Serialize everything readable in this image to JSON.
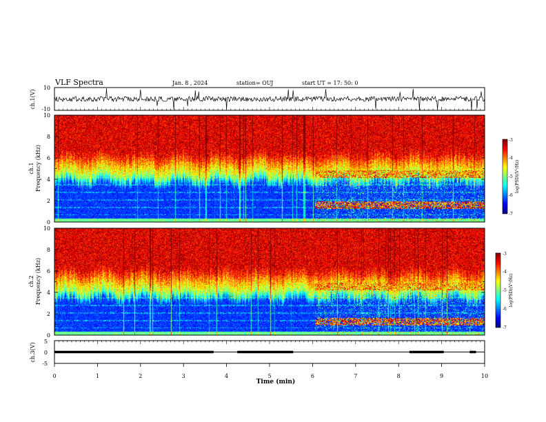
{
  "header": {
    "title": "VLF Spectra",
    "date": "Jan. 8 , 2024",
    "station": "station= OUJ",
    "start": "start UT = 17: 50: 0"
  },
  "chart_data": [
    {
      "type": "line",
      "panel": "ch1-waveform",
      "ylabel": "ch.1(V)",
      "ylim": [
        -10,
        10
      ],
      "y_ticks": [
        "10",
        "-10"
      ],
      "xlim": [
        0,
        10
      ],
      "series_color": "#000000",
      "baseline_v": 0
    },
    {
      "type": "heatmap",
      "panel": "ch1-spectrogram",
      "ylabel_top": "ch.1",
      "ylabel": "Frequency (kHz)",
      "ylim": [
        0,
        10
      ],
      "y_ticks": [
        "0",
        "2",
        "4",
        "6",
        "8",
        "10"
      ],
      "xlim": [
        0,
        10
      ],
      "colorbar": {
        "label": "log(PSD)(V²/Hz)",
        "range": [
          -7,
          -3
        ],
        "ticks": [
          "-3",
          "-4",
          "-5",
          "-6",
          "-7"
        ]
      },
      "feature_notes": {
        "low_band_top_khz": 4.3,
        "emission_start_min": 6.05,
        "emission_bands_khz": [
          1.6,
          4.5
        ]
      }
    },
    {
      "type": "heatmap",
      "panel": "ch2-spectrogram",
      "ylabel_top": "ch.2",
      "ylabel": "Frequency (kHz)",
      "ylim": [
        0,
        10
      ],
      "y_ticks": [
        "0",
        "2",
        "4",
        "6",
        "8",
        "10"
      ],
      "xlim": [
        0,
        10
      ],
      "colorbar": {
        "label": "log(PSD)(V²/Hz)",
        "range": [
          -7,
          -3
        ],
        "ticks": [
          "-3",
          "-4",
          "-5",
          "-6",
          "-7"
        ]
      },
      "feature_notes": {
        "low_band_top_khz": 4.0,
        "emission_start_min": 6.05,
        "emission_bands_khz": [
          1.3,
          4.6
        ]
      }
    },
    {
      "type": "line",
      "panel": "ch3-level",
      "ylabel": "ch.3(V)",
      "ylim": [
        -5,
        5
      ],
      "y_ticks": [
        "5",
        "0",
        "-5"
      ],
      "xlim": [
        0,
        10
      ],
      "xlabel": "Time (min)",
      "x_ticks": [
        "0",
        "1",
        "2",
        "3",
        "4",
        "5",
        "6",
        "7",
        "8",
        "9",
        "10"
      ],
      "level_v": 0,
      "segments_min": [
        [
          0,
          3.7
        ],
        [
          4.25,
          5.55
        ],
        [
          8.25,
          9.05
        ],
        [
          9.65,
          9.8
        ]
      ]
    }
  ],
  "colors": {
    "axis": "#000000",
    "colormap_low": "#00007a",
    "colormap_high": "#cc1010"
  }
}
